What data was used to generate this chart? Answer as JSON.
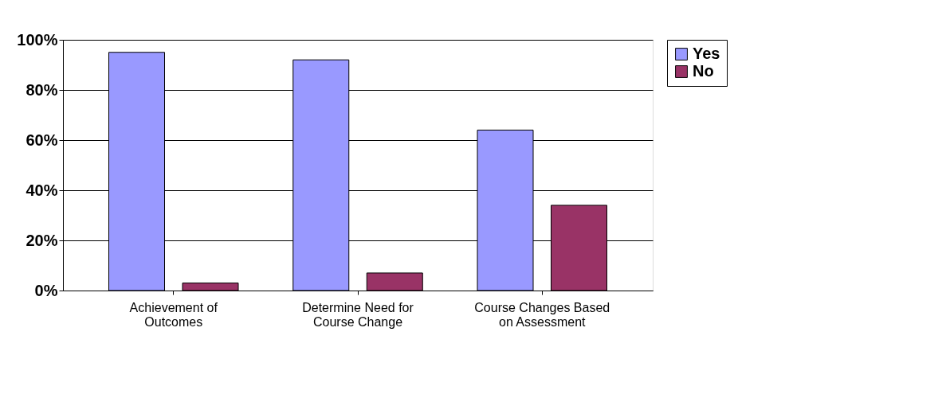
{
  "chart_data": {
    "type": "bar",
    "categories": [
      "Achievement of Outcomes",
      "Determine Need for Course Change",
      "Course Changes Based on Assessment"
    ],
    "series": [
      {
        "name": "Yes",
        "color": "#9999ff",
        "values": [
          95,
          92,
          64
        ]
      },
      {
        "name": "No",
        "color": "#993366",
        "values": [
          3,
          7,
          34
        ]
      }
    ],
    "ylim": [
      0,
      100
    ],
    "yticks": [
      {
        "value": 0,
        "label": "0%"
      },
      {
        "value": 20,
        "label": "20%"
      },
      {
        "value": 40,
        "label": "40%"
      },
      {
        "value": 60,
        "label": "60%"
      },
      {
        "value": 80,
        "label": "80%"
      },
      {
        "value": 100,
        "label": "100%"
      }
    ],
    "grid": "y",
    "legend": "right"
  }
}
